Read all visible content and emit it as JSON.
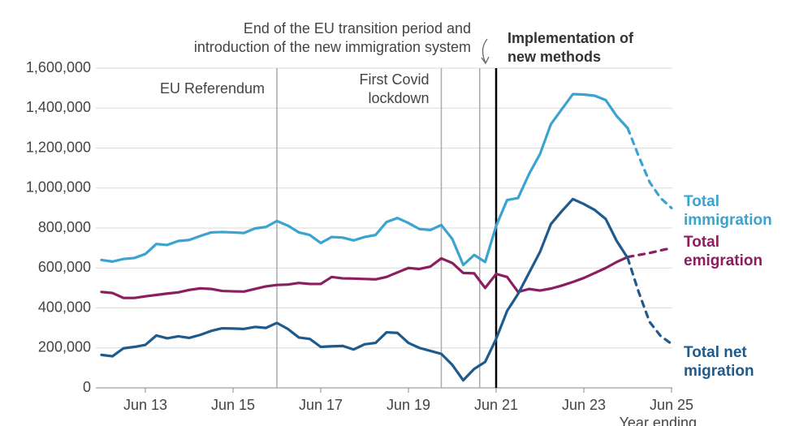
{
  "chart_data": {
    "type": "line",
    "x_axis_label": "Year ending",
    "categories": [
      null,
      null,
      null,
      null,
      "Jun 13",
      null,
      null,
      null,
      null,
      null,
      null,
      null,
      "Jun 15",
      null,
      null,
      null,
      null,
      null,
      null,
      null,
      "Jun 17",
      null,
      null,
      null,
      null,
      null,
      null,
      null,
      "Jun 19",
      null,
      null,
      null,
      null,
      null,
      null,
      null,
      "Jun 21",
      null,
      null,
      null,
      null,
      null,
      null,
      null,
      "Jun 23",
      null,
      null,
      null,
      null,
      null,
      null,
      null,
      "Jun 25"
    ],
    "ylim": [
      0,
      1600000
    ],
    "yticks": [
      0,
      {
        "value": 200000,
        "label": "200,000"
      },
      {
        "value": 400000,
        "label": "400,000"
      },
      {
        "value": 600000,
        "label": "600,000"
      },
      {
        "value": 800000,
        "label": "800,000"
      },
      {
        "value": 1000000,
        "label": "1,000,000"
      },
      {
        "value": 1200000,
        "label": "1,200,000"
      },
      {
        "value": 1400000,
        "label": "1,400,000"
      },
      {
        "value": 1600000,
        "label": "1,600,000"
      }
    ],
    "grid": true,
    "events": [
      {
        "at": 16,
        "lines": [
          "EU Referendum"
        ],
        "color": "#aaaaaa"
      },
      {
        "at": 31,
        "lines": [
          "First Covid",
          "lockdown"
        ],
        "color": "#aaaaaa"
      },
      {
        "at": 34.5,
        "lines": [
          "End of the EU transition period and",
          "introduction of the new immigration system"
        ],
        "color": "#aaaaaa"
      },
      {
        "at": 36,
        "lines": [
          "Implementation of",
          "new methods"
        ],
        "color": "#000000"
      }
    ],
    "series": [
      {
        "name": "Total immigration",
        "color": "#3ba3d0",
        "values": [
          640000,
          632000,
          645000,
          650000,
          670000,
          720000,
          715000,
          735000,
          740000,
          760000,
          778000,
          780000,
          778000,
          775000,
          798000,
          805000,
          835000,
          812000,
          778000,
          765000,
          725000,
          755000,
          752000,
          738000,
          755000,
          765000,
          830000,
          850000,
          825000,
          795000,
          790000,
          815000,
          745000,
          615000,
          665000,
          630000,
          810000,
          940000,
          950000,
          1070000,
          1170000,
          1320000,
          1395000,
          1470000,
          1468000,
          1462000,
          1440000,
          1360000,
          1300000,
          null,
          null,
          null,
          null
        ],
        "dashed_values": [
          null,
          null,
          null,
          null,
          null,
          null,
          null,
          null,
          null,
          null,
          null,
          null,
          null,
          null,
          null,
          null,
          null,
          null,
          null,
          null,
          null,
          null,
          null,
          null,
          null,
          null,
          null,
          null,
          null,
          null,
          null,
          null,
          null,
          null,
          null,
          null,
          null,
          null,
          null,
          null,
          null,
          null,
          null,
          null,
          null,
          null,
          null,
          null,
          1300000,
          1160000,
          1030000,
          950000,
          900000
        ]
      },
      {
        "name": "Total emigration",
        "color": "#8b1e5e",
        "values": [
          480000,
          475000,
          450000,
          450000,
          458000,
          465000,
          472000,
          478000,
          490000,
          498000,
          495000,
          485000,
          483000,
          482000,
          495000,
          508000,
          515000,
          517000,
          525000,
          520000,
          520000,
          555000,
          548000,
          547000,
          545000,
          543000,
          555000,
          578000,
          600000,
          595000,
          607000,
          648000,
          625000,
          575000,
          573000,
          500000,
          570000,
          555000,
          480000,
          495000,
          487000,
          497000,
          512000,
          530000,
          550000,
          575000,
          600000,
          630000,
          655000,
          null,
          null,
          null,
          null
        ],
        "dashed_values": [
          null,
          null,
          null,
          null,
          null,
          null,
          null,
          null,
          null,
          null,
          null,
          null,
          null,
          null,
          null,
          null,
          null,
          null,
          null,
          null,
          null,
          null,
          null,
          null,
          null,
          null,
          null,
          null,
          null,
          null,
          null,
          null,
          null,
          null,
          null,
          null,
          null,
          null,
          null,
          null,
          null,
          null,
          null,
          null,
          null,
          null,
          null,
          null,
          655000,
          665000,
          675000,
          688000,
          700000
        ]
      },
      {
        "name": "Total net migration",
        "color": "#1f5a8c",
        "values": [
          165000,
          158000,
          198000,
          205000,
          215000,
          262000,
          248000,
          258000,
          250000,
          265000,
          285000,
          298000,
          297000,
          295000,
          305000,
          300000,
          325000,
          295000,
          252000,
          245000,
          205000,
          208000,
          210000,
          192000,
          218000,
          225000,
          278000,
          275000,
          225000,
          200000,
          185000,
          170000,
          115000,
          38000,
          95000,
          130000,
          245000,
          385000,
          470000,
          575000,
          680000,
          820000,
          885000,
          945000,
          920000,
          890000,
          845000,
          735000,
          650000,
          null,
          null,
          null,
          null
        ],
        "dashed_values": [
          null,
          null,
          null,
          null,
          null,
          null,
          null,
          null,
          null,
          null,
          null,
          null,
          null,
          null,
          null,
          null,
          null,
          null,
          null,
          null,
          null,
          null,
          null,
          null,
          null,
          null,
          null,
          null,
          null,
          null,
          null,
          null,
          null,
          null,
          null,
          null,
          null,
          null,
          null,
          null,
          null,
          null,
          null,
          null,
          null,
          null,
          null,
          null,
          650000,
          480000,
          330000,
          260000,
          220000
        ]
      }
    ]
  }
}
